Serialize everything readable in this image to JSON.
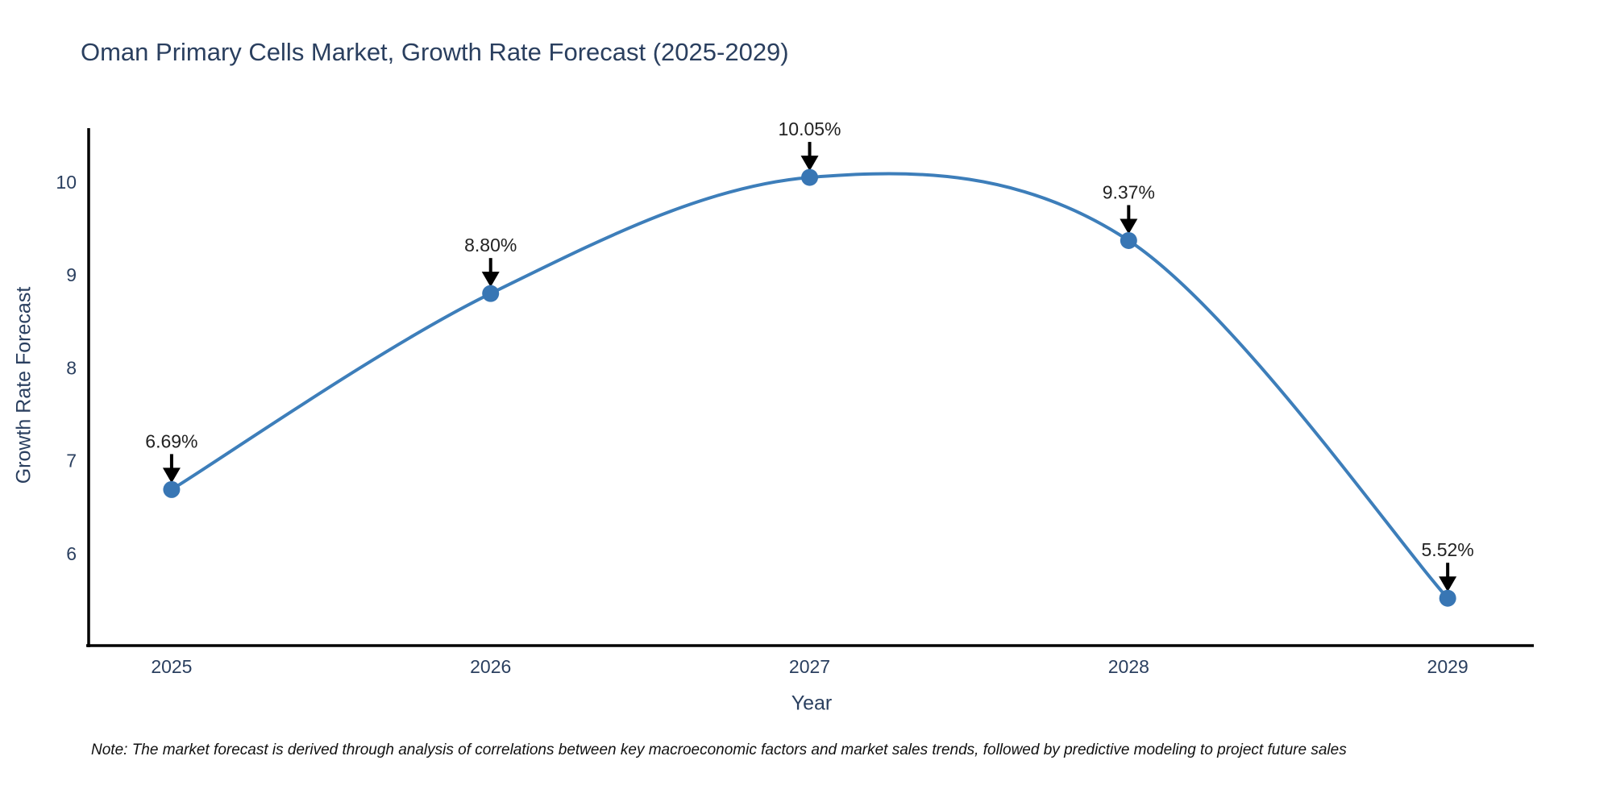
{
  "note": "Note: The market forecast is derived through analysis of correlations between key macroeconomic factors and market sales trends, followed by predictive modeling to project future sales",
  "chart_data": {
    "type": "line",
    "title": "Oman Primary Cells Market, Growth Rate Forecast (2025-2029)",
    "xlabel": "Year",
    "ylabel": "Growth Rate Forecast",
    "x": [
      2025,
      2026,
      2027,
      2028,
      2029
    ],
    "values": [
      6.69,
      8.8,
      10.05,
      9.37,
      5.52
    ],
    "point_labels": [
      "6.69%",
      "8.80%",
      "10.05%",
      "9.37%",
      "5.52%"
    ],
    "xtick_labels": [
      "2025",
      "2026",
      "2027",
      "2028",
      "2029"
    ],
    "yticks": [
      6,
      7,
      8,
      9,
      10
    ],
    "xlim": [
      2024.74,
      2029.27
    ],
    "ylim": [
      5.01,
      10.58
    ],
    "line_shape": "spline",
    "grid": false,
    "legend": false,
    "annotation_style": "label-above-with-down-arrow",
    "colors": {
      "line": "#3d7eba",
      "marker": "#3876b4",
      "axis": "#000000",
      "title_text": "#2a3f5f",
      "tick_text": "#2a3f5f",
      "annotation_text": "#222222",
      "arrow": "#000000",
      "background": "#ffffff"
    }
  }
}
